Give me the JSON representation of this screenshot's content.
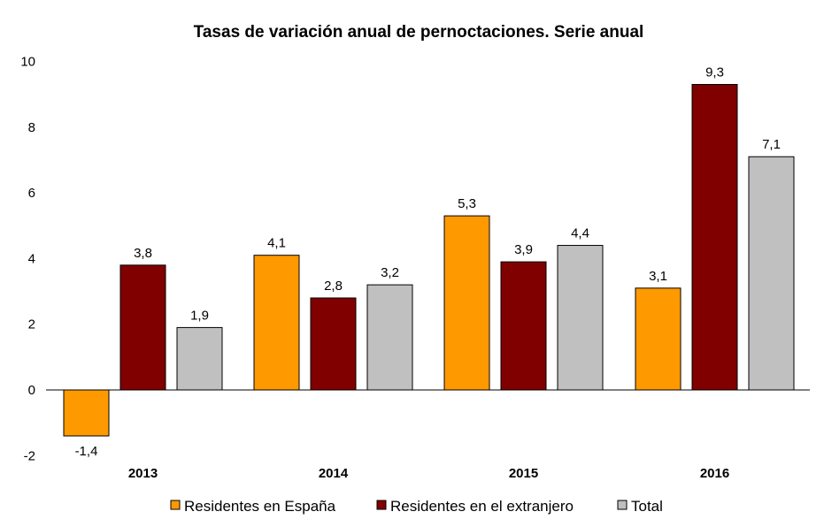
{
  "chart_data": {
    "type": "bar",
    "title": "Tasas de variación anual de pernoctaciones. Serie anual",
    "categories": [
      "2013",
      "2014",
      "2015",
      "2016"
    ],
    "series": [
      {
        "name": "Residentes en España",
        "color": "#FF9900",
        "values": [
          -1.4,
          4.1,
          5.3,
          3.1
        ],
        "labels": [
          "-1,4",
          "4,1",
          "5,3",
          "3,1"
        ]
      },
      {
        "name": "Residentes en el extranjero",
        "color": "#800000",
        "values": [
          3.8,
          2.8,
          3.9,
          9.3
        ],
        "labels": [
          "3,8",
          "2,8",
          "3,9",
          "9,3"
        ]
      },
      {
        "name": "Total",
        "color": "#C0C0C0",
        "values": [
          1.9,
          3.2,
          4.4,
          7.1
        ],
        "labels": [
          "1,9",
          "3,2",
          "4,4",
          "7,1"
        ]
      }
    ],
    "ylim": [
      -2,
      10
    ],
    "yticks": [
      -2,
      0,
      2,
      4,
      6,
      8,
      10
    ],
    "ytick_labels": [
      "-2",
      "0",
      "2",
      "4",
      "6",
      "8",
      "10"
    ],
    "xlabel": "",
    "ylabel": "",
    "grid": false,
    "legend_position": "bottom"
  }
}
